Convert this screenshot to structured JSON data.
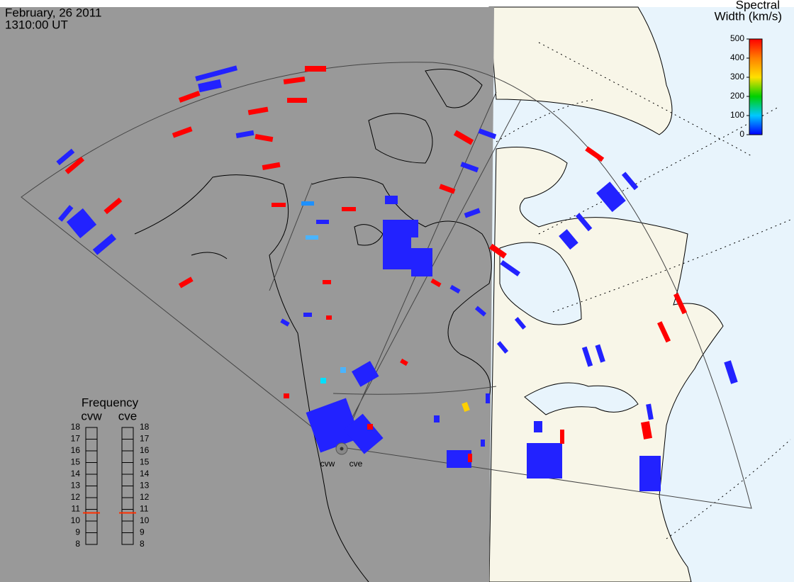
{
  "header": {
    "date": "February, 26 2011",
    "time": "1310:00 UT"
  },
  "colorbar": {
    "title": [
      "Spectral",
      "Width (km/s)"
    ],
    "range": [
      0,
      500
    ],
    "ticks": [
      0,
      100,
      200,
      300,
      400,
      500
    ]
  },
  "frequency": {
    "title": "Frequency",
    "range": [
      8,
      18
    ],
    "ticks": [
      8,
      9,
      10,
      11,
      12,
      13,
      14,
      15,
      16,
      17,
      18
    ],
    "radars": [
      {
        "name": "cvw",
        "value": 10.7
      },
      {
        "name": "cve",
        "value": 10.7
      }
    ]
  },
  "radar_labels": [
    "cvw",
    "cve"
  ]
}
